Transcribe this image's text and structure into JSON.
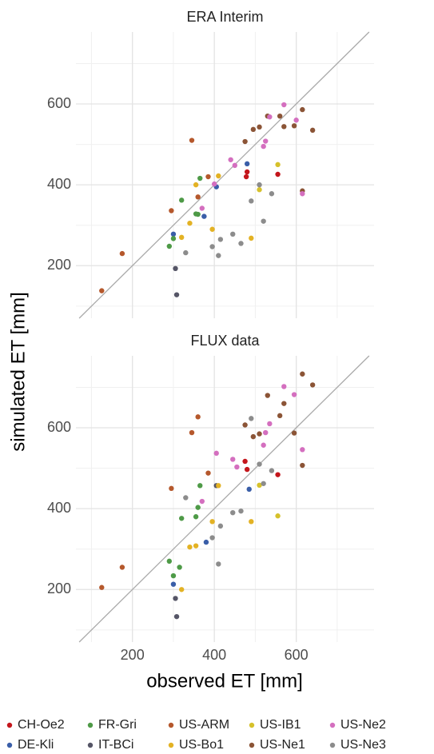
{
  "chart_data": [
    {
      "type": "scatter",
      "title": "ERA Interim",
      "ylabel": "simulated ET [mm]",
      "xlim": [
        62,
        790
      ],
      "ylim": [
        70,
        778
      ],
      "xticks": [
        200,
        400,
        600
      ],
      "yticks": [
        200,
        400,
        600
      ],
      "xminorticks": [
        100,
        300,
        500,
        700
      ],
      "yminorticks": [
        100,
        300,
        500,
        700
      ],
      "grid": true,
      "identity_line": true,
      "identity_color": "#aaaaaa",
      "series": [
        {
          "name": "CH-Oe2",
          "color": "#c4161c",
          "x": [
            478,
            480,
            555
          ],
          "values": [
            420,
            432,
            426
          ]
        },
        {
          "name": "DE-Kli",
          "color": "#3a5ea8",
          "x": [
            300,
            375,
            405,
            480
          ],
          "values": [
            278,
            322,
            395,
            452
          ]
        },
        {
          "name": "FR-Gri",
          "color": "#4e9a47",
          "x": [
            290,
            300,
            320,
            355,
            360,
            365
          ],
          "values": [
            248,
            267,
            362,
            328,
            327,
            416
          ]
        },
        {
          "name": "IT-BCi",
          "color": "#555566",
          "x": [
            305,
            308
          ],
          "values": [
            193,
            128
          ]
        },
        {
          "name": "US-ARM",
          "color": "#b5582c",
          "x": [
            125,
            175,
            295,
            345,
            360,
            385
          ],
          "values": [
            138,
            230,
            336,
            510,
            370,
            420
          ]
        },
        {
          "name": "US-Bo1",
          "color": "#e3b224",
          "x": [
            320,
            340,
            355,
            395,
            410,
            490
          ],
          "values": [
            270,
            305,
            400,
            290,
            422,
            268
          ]
        },
        {
          "name": "US-IB1",
          "color": "#d6c12b",
          "x": [
            510,
            555
          ],
          "values": [
            388,
            450
          ]
        },
        {
          "name": "US-Ne1",
          "color": "#8b5436",
          "x": [
            475,
            495,
            510,
            530,
            560,
            570,
            595,
            615,
            615,
            640
          ],
          "values": [
            507,
            537,
            543,
            570,
            570,
            544,
            546,
            586,
            385,
            535
          ]
        },
        {
          "name": "US-Ne2",
          "color": "#d46fbf",
          "x": [
            370,
            400,
            440,
            450,
            520,
            525,
            535,
            570,
            600,
            615
          ],
          "values": [
            342,
            402,
            462,
            448,
            495,
            508,
            568,
            598,
            560,
            378
          ]
        },
        {
          "name": "US-Ne3",
          "color": "#8c8c8c",
          "x": [
            330,
            395,
            410,
            415,
            445,
            465,
            490,
            510,
            520,
            540
          ],
          "values": [
            232,
            247,
            225,
            265,
            278,
            255,
            360,
            400,
            310,
            378
          ]
        }
      ]
    },
    {
      "type": "scatter",
      "title": "FLUX data",
      "xlabel": "observed ET [mm]",
      "xlim": [
        62,
        790
      ],
      "ylim": [
        70,
        778
      ],
      "xticks": [
        200,
        400,
        600
      ],
      "yticks": [
        200,
        400,
        600
      ],
      "xminorticks": [
        100,
        300,
        500,
        700
      ],
      "yminorticks": [
        100,
        300,
        500,
        700
      ],
      "grid": true,
      "identity_line": true,
      "identity_color": "#aaaaaa",
      "series": [
        {
          "color": "#c4161c",
          "x": [
            475,
            480,
            555
          ],
          "values": [
            517,
            497,
            484
          ]
        },
        {
          "color": "#3a5ea8",
          "x": [
            300,
            380,
            485
          ],
          "values": [
            213,
            317,
            448
          ]
        },
        {
          "color": "#4e9a47",
          "x": [
            290,
            300,
            315,
            320,
            355,
            360,
            365
          ],
          "values": [
            270,
            234,
            255,
            376,
            380,
            403,
            457
          ]
        },
        {
          "color": "#555566",
          "x": [
            305,
            308,
            405
          ],
          "values": [
            178,
            133,
            457
          ]
        },
        {
          "color": "#b5582c",
          "x": [
            125,
            175,
            295,
            345,
            360,
            385
          ],
          "values": [
            205,
            255,
            450,
            588,
            627,
            488
          ]
        },
        {
          "color": "#e3b224",
          "x": [
            320,
            340,
            355,
            395,
            410,
            490
          ],
          "values": [
            200,
            305,
            308,
            368,
            457,
            368
          ]
        },
        {
          "color": "#d6c12b",
          "x": [
            510,
            555
          ],
          "values": [
            458,
            382
          ]
        },
        {
          "color": "#8b5436",
          "x": [
            475,
            495,
            510,
            530,
            560,
            570,
            595,
            615,
            615,
            640
          ],
          "values": [
            607,
            578,
            585,
            680,
            630,
            660,
            587,
            733,
            507,
            706
          ]
        },
        {
          "color": "#d46fbf",
          "x": [
            370,
            405,
            445,
            455,
            520,
            525,
            535,
            570,
            595,
            615
          ],
          "values": [
            418,
            537,
            522,
            503,
            557,
            588,
            610,
            702,
            682,
            546
          ]
        },
        {
          "color": "#8c8c8c",
          "x": [
            330,
            395,
            410,
            415,
            445,
            465,
            490,
            510,
            520,
            540
          ],
          "values": [
            427,
            328,
            263,
            357,
            390,
            394,
            623,
            510,
            462,
            494
          ]
        }
      ]
    }
  ]
}
